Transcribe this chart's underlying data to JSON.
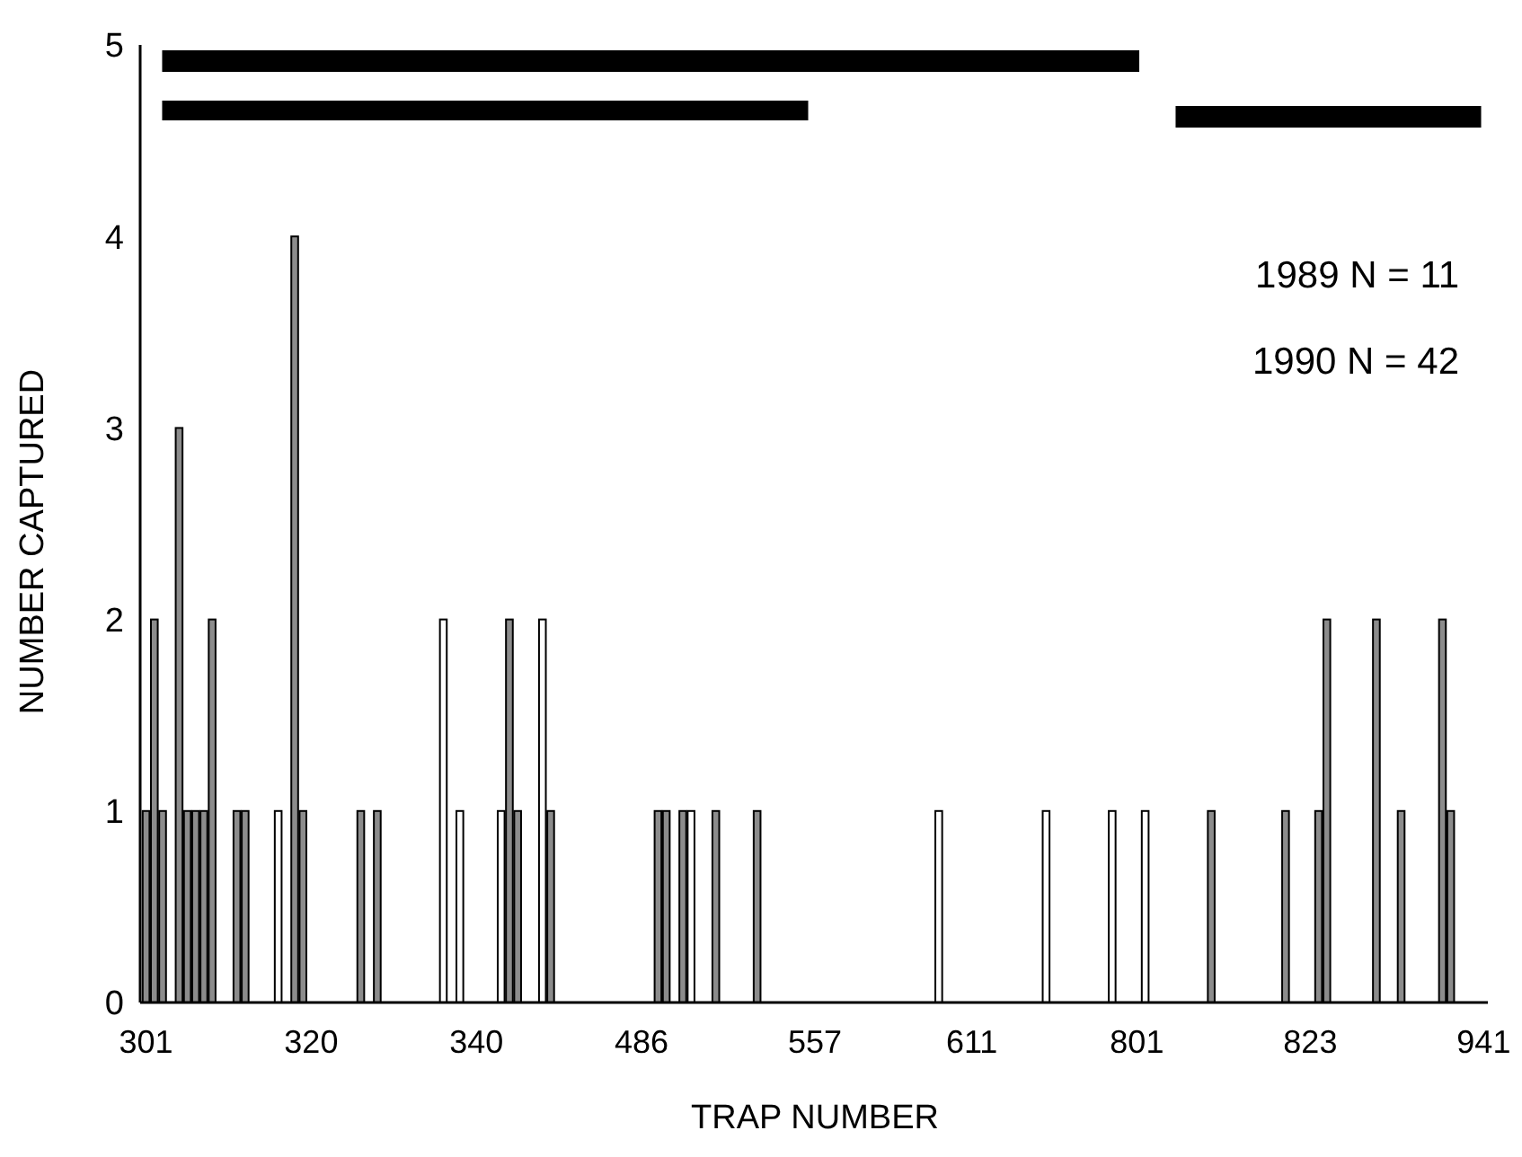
{
  "chart_data": {
    "type": "bar",
    "xlabel": "TRAP NUMBER",
    "ylabel": "NUMBER CAPTURED",
    "categories": [
      "301",
      null,
      null,
      null,
      null,
      null,
      null,
      null,
      null,
      null,
      null,
      null,
      null,
      null,
      null,
      null,
      null,
      null,
      null,
      null,
      "320",
      null,
      null,
      null,
      null,
      null,
      null,
      null,
      null,
      null,
      null,
      null,
      null,
      null,
      null,
      null,
      null,
      null,
      null,
      null,
      "340",
      null,
      null,
      null,
      null,
      null,
      null,
      null,
      null,
      null,
      null,
      null,
      null,
      null,
      null,
      null,
      null,
      null,
      null,
      null,
      "486",
      null,
      null,
      null,
      null,
      null,
      null,
      null,
      null,
      null,
      null,
      null,
      null,
      null,
      null,
      null,
      null,
      null,
      null,
      null,
      null,
      "557",
      null,
      null,
      null,
      null,
      null,
      null,
      null,
      null,
      null,
      null,
      null,
      null,
      null,
      null,
      null,
      null,
      null,
      null,
      "611",
      null,
      null,
      null,
      null,
      null,
      null,
      null,
      null,
      null,
      null,
      null,
      null,
      null,
      null,
      null,
      null,
      null,
      null,
      null,
      "801",
      null,
      null,
      null,
      null,
      null,
      null,
      null,
      null,
      null,
      null,
      null,
      null,
      null,
      null,
      null,
      null,
      null,
      null,
      null,
      null,
      "823",
      null,
      null,
      null,
      null,
      null,
      null,
      null,
      null,
      null,
      null,
      null,
      null,
      null,
      null,
      null,
      null,
      null,
      null,
      null,
      null,
      "941"
    ],
    "series": [
      {
        "color": "#ffffff",
        "values": [
          null,
          null,
          null,
          null,
          null,
          null,
          null,
          null,
          null,
          null,
          null,
          null,
          null,
          null,
          null,
          null,
          1,
          null,
          null,
          null,
          null,
          null,
          null,
          null,
          null,
          null,
          null,
          null,
          null,
          null,
          null,
          null,
          null,
          null,
          null,
          null,
          2,
          null,
          1,
          null,
          null,
          null,
          null,
          1,
          null,
          null,
          null,
          null,
          2,
          null,
          null,
          null,
          null,
          null,
          null,
          null,
          null,
          null,
          null,
          null,
          null,
          null,
          null,
          null,
          null,
          null,
          1,
          null,
          null,
          null,
          null,
          null,
          null,
          null,
          null,
          null,
          null,
          null,
          null,
          null,
          null,
          null,
          null,
          null,
          null,
          null,
          null,
          null,
          null,
          null,
          null,
          null,
          null,
          null,
          null,
          null,
          1,
          null,
          null,
          null,
          null,
          null,
          null,
          null,
          null,
          null,
          null,
          null,
          null,
          1,
          null,
          null,
          null,
          null,
          null,
          null,
          null,
          1,
          null,
          null,
          null,
          1,
          null,
          null,
          null,
          null,
          null,
          null,
          null,
          null,
          null,
          null,
          null,
          null,
          null,
          null,
          null,
          null,
          null,
          null,
          null,
          null,
          null,
          null,
          null,
          null,
          null,
          null,
          null,
          null,
          null,
          null,
          null,
          null,
          null,
          null,
          null,
          null,
          null,
          null,
          null,
          null,
          null
        ]
      },
      {
        "color": "#8c8c8c",
        "values": [
          1,
          2,
          1,
          null,
          3,
          1,
          1,
          1,
          2,
          null,
          null,
          1,
          1,
          null,
          null,
          null,
          null,
          null,
          4,
          1,
          null,
          null,
          null,
          null,
          null,
          null,
          1,
          null,
          1,
          null,
          null,
          null,
          null,
          null,
          null,
          null,
          null,
          null,
          null,
          null,
          null,
          null,
          null,
          null,
          2,
          1,
          null,
          null,
          null,
          1,
          null,
          null,
          null,
          null,
          null,
          null,
          null,
          null,
          null,
          null,
          null,
          null,
          1,
          1,
          null,
          1,
          null,
          null,
          null,
          1,
          null,
          null,
          null,
          null,
          1,
          null,
          null,
          null,
          null,
          null,
          null,
          null,
          null,
          null,
          null,
          null,
          null,
          null,
          null,
          null,
          null,
          null,
          null,
          null,
          null,
          null,
          null,
          null,
          null,
          null,
          null,
          null,
          null,
          null,
          null,
          null,
          null,
          null,
          null,
          null,
          null,
          null,
          null,
          null,
          null,
          null,
          null,
          null,
          null,
          null,
          null,
          null,
          null,
          null,
          null,
          null,
          null,
          null,
          null,
          1,
          null,
          null,
          null,
          null,
          null,
          null,
          null,
          null,
          1,
          null,
          null,
          null,
          1,
          2,
          null,
          null,
          null,
          null,
          null,
          2,
          null,
          null,
          1,
          null,
          null,
          null,
          null,
          2,
          1,
          null,
          null,
          null,
          null
        ]
      }
    ],
    "ylim": [
      0,
      5
    ],
    "yticks": [
      0,
      1,
      2,
      3,
      4,
      5
    ],
    "annotations": [
      "1989 N = 11",
      "1990 N = 42"
    ]
  }
}
